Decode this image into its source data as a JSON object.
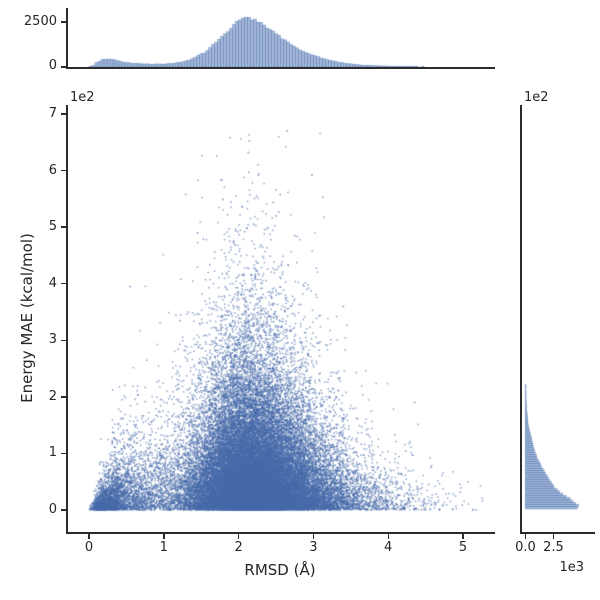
{
  "figure": {
    "background": "#ffffff",
    "accent_color": "#4C72B0",
    "spine_color": "#2b2b2b",
    "text_color": "#262626"
  },
  "main_plot": {
    "xlabel": "RMSD (Å)",
    "ylabel": "Energy MAE (kcal/mol)",
    "y_offset_label": "1e2",
    "x_ticks": [
      "0",
      "1",
      "2",
      "3",
      "4",
      "5"
    ],
    "y_ticks": [
      "0",
      "1",
      "2",
      "3",
      "4",
      "5",
      "6",
      "7"
    ]
  },
  "top_marginal": {
    "y_ticks": [
      "0",
      "2500"
    ]
  },
  "right_marginal": {
    "x_ticks": [
      "0.0",
      "2.5"
    ],
    "x_offset_label": "1e3",
    "y_offset_label": "1e2"
  },
  "chart_data": {
    "type": "scatter",
    "description": "Joint plot: dense scatter of Energy MAE vs RMSD with marginal histograms (top: RMSD distribution, right: Energy MAE distribution)",
    "xlabel": "RMSD (Å)",
    "ylabel": "Energy MAE (kcal/mol)",
    "xlim": [
      -0.28,
      5.4
    ],
    "ylim_1e2": [
      -0.35,
      7.08
    ],
    "x_tick_values": [
      0,
      1,
      2,
      3,
      4,
      5
    ],
    "y_tick_values_1e2": [
      0,
      1,
      2,
      3,
      4,
      5,
      6,
      7
    ],
    "marker_color": "#4C72B0",
    "n_points_rendered": 45000,
    "top_marginal_hist": {
      "type": "bar",
      "bin_width": 0.04,
      "axis_max_tick": 2500,
      "peak_count": 2730,
      "peak_x": 2.1,
      "profile_x_count": [
        [
          0.0,
          0
        ],
        [
          0.05,
          60
        ],
        [
          0.1,
          230
        ],
        [
          0.16,
          380
        ],
        [
          0.22,
          425
        ],
        [
          0.27,
          430
        ],
        [
          0.33,
          400
        ],
        [
          0.4,
          330
        ],
        [
          0.48,
          255
        ],
        [
          0.56,
          205
        ],
        [
          0.68,
          175
        ],
        [
          0.8,
          160
        ],
        [
          0.95,
          158
        ],
        [
          1.1,
          185
        ],
        [
          1.25,
          280
        ],
        [
          1.4,
          480
        ],
        [
          1.55,
          820
        ],
        [
          1.7,
          1350
        ],
        [
          1.85,
          1950
        ],
        [
          1.95,
          2400
        ],
        [
          2.05,
          2700
        ],
        [
          2.12,
          2730
        ],
        [
          2.2,
          2640
        ],
        [
          2.3,
          2430
        ],
        [
          2.4,
          2150
        ],
        [
          2.5,
          1850
        ],
        [
          2.62,
          1480
        ],
        [
          2.75,
          1120
        ],
        [
          2.9,
          800
        ],
        [
          3.05,
          560
        ],
        [
          3.2,
          390
        ],
        [
          3.35,
          255
        ],
        [
          3.5,
          165
        ],
        [
          3.65,
          110
        ],
        [
          3.8,
          72
        ],
        [
          4.0,
          45
        ],
        [
          4.2,
          30
        ],
        [
          4.4,
          20
        ],
        [
          4.6,
          12
        ],
        [
          4.8,
          7
        ],
        [
          5.0,
          4
        ],
        [
          5.15,
          2
        ],
        [
          5.3,
          0
        ]
      ]
    },
    "right_marginal_hist": {
      "type": "bar-horizontal",
      "bin_width_1e2": 0.04,
      "axis_ticks_1e3": [
        0.0,
        2.5
      ],
      "max_count": 4900,
      "profile_E_count": [
        [
          0.0,
          4450
        ],
        [
          0.04,
          4900
        ],
        [
          0.1,
          4400
        ],
        [
          0.18,
          3900
        ],
        [
          0.27,
          3250
        ],
        [
          0.35,
          2700
        ],
        [
          0.45,
          2300
        ],
        [
          0.53,
          2050
        ],
        [
          0.62,
          1780
        ],
        [
          0.7,
          1550
        ],
        [
          0.8,
          1280
        ],
        [
          0.88,
          1070
        ],
        [
          1.0,
          860
        ],
        [
          1.06,
          750
        ],
        [
          1.15,
          640
        ],
        [
          1.24,
          530
        ],
        [
          1.33,
          400
        ],
        [
          1.41,
          300
        ],
        [
          1.5,
          235
        ],
        [
          1.6,
          180
        ],
        [
          1.7,
          125
        ],
        [
          1.77,
          95
        ],
        [
          1.85,
          70
        ],
        [
          1.94,
          48
        ],
        [
          2.1,
          32
        ],
        [
          2.3,
          18
        ],
        [
          2.5,
          10
        ],
        [
          2.8,
          5
        ],
        [
          3.2,
          2.5
        ],
        [
          3.6,
          1.2
        ],
        [
          4.2,
          0.5
        ],
        [
          5.0,
          0.2
        ],
        [
          6.6,
          0
        ]
      ]
    },
    "scatter_model": {
      "x_sampled_from": "top_marginal_hist.profile_x_count",
      "y_model": "E ~ Exponential(scale(x)); scale_1e2(x) = (0.20 + 0.60*exp(-((x-2.15)^2)/(2*1.15^2))) * min(1, x/0.45 + 0.08)",
      "outliers_x_E1e2": [
        [
          2.65,
          6.7
        ],
        [
          2.13,
          6.32
        ],
        [
          2.98,
          5.92
        ],
        [
          1.79,
          5.49
        ],
        [
          2.5,
          5.2
        ],
        [
          2.2,
          5.05
        ],
        [
          1.45,
          4.9
        ],
        [
          2.75,
          4.85
        ],
        [
          0.55,
          3.95
        ],
        [
          3.4,
          3.6
        ]
      ]
    }
  }
}
